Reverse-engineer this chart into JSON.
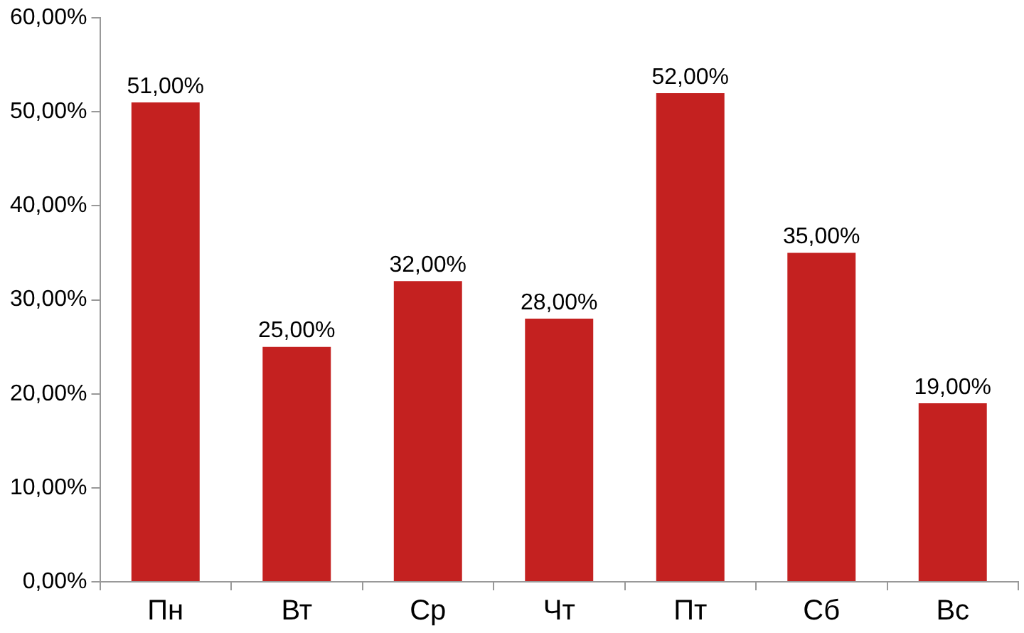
{
  "chart_data": {
    "type": "bar",
    "categories": [
      "Пн",
      "Вт",
      "Ср",
      "Чт",
      "Пт",
      "Сб",
      "Вс"
    ],
    "values": [
      51,
      25,
      32,
      28,
      52,
      35,
      19
    ],
    "value_labels": [
      "51,00%",
      "25,00%",
      "32,00%",
      "28,00%",
      "52,00%",
      "35,00%",
      "19,00%"
    ],
    "color": "#c42120",
    "ylim": [
      0,
      60
    ],
    "yticks": [
      {
        "value": 0,
        "label": "0,00%"
      },
      {
        "value": 10,
        "label": "10,00%"
      },
      {
        "value": 20,
        "label": "20,00%"
      },
      {
        "value": 30,
        "label": "30,00%"
      },
      {
        "value": 40,
        "label": "40,00%"
      },
      {
        "value": 50,
        "label": "50,00%"
      },
      {
        "value": 60,
        "label": "60,00%"
      }
    ],
    "grid": false,
    "legend": false
  }
}
